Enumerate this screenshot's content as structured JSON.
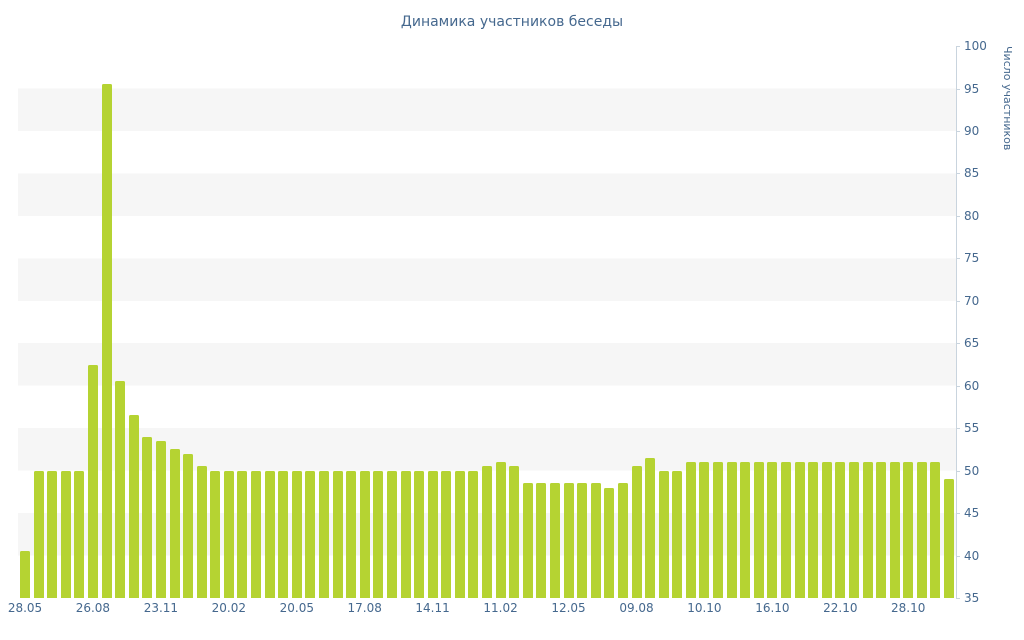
{
  "colors": {
    "bar": "#b5d332",
    "stripe": "#f6f6f6",
    "text": "#45688e",
    "axis": "#c9d4de"
  },
  "chart_data": {
    "type": "bar",
    "title": "Динамика участников беседы",
    "ylabel": "Число участников",
    "xlabel": "",
    "ylim": [
      35,
      100
    ],
    "y_ticks": [
      35,
      40,
      45,
      50,
      55,
      60,
      65,
      70,
      75,
      80,
      85,
      90,
      95,
      100
    ],
    "grid": "horizontal-stripes",
    "legend": "none",
    "x_tick_every": 5,
    "x_tick_labels": [
      "28.05",
      "26.08",
      "23.11",
      "20.02",
      "20.05",
      "17.08",
      "14.11",
      "11.02",
      "12.05",
      "09.08",
      "10.10",
      "16.10",
      "22.10",
      "28.10"
    ],
    "values": [
      40.5,
      50,
      50,
      50,
      50,
      62.5,
      95.5,
      60.5,
      56.5,
      54,
      53.5,
      52.5,
      52,
      50.5,
      50,
      50,
      50,
      50,
      50,
      50,
      50,
      50,
      50,
      50,
      50,
      50,
      50,
      50,
      50,
      50,
      50,
      50,
      50,
      50,
      50.5,
      51,
      50.5,
      48.5,
      48.5,
      48.5,
      48.5,
      48.5,
      48.5,
      48,
      48.5,
      50.5,
      51.5,
      50,
      50,
      51,
      51,
      51,
      51,
      51,
      51,
      51,
      51,
      51,
      51,
      51,
      51,
      51,
      51,
      51,
      51,
      51,
      51,
      51,
      49
    ]
  }
}
